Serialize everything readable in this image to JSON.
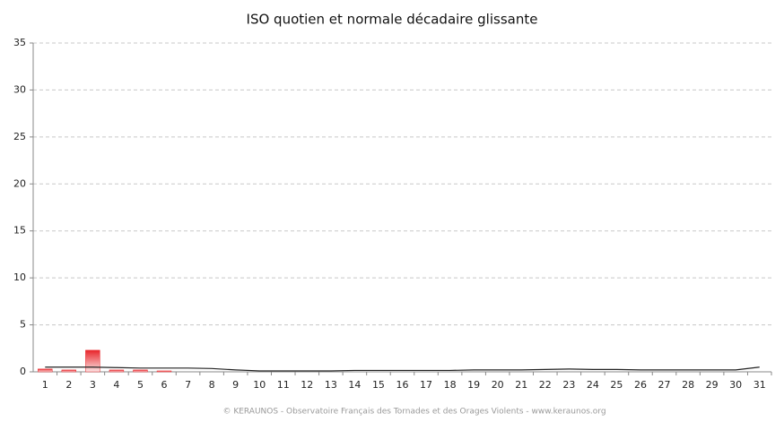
{
  "chart_data": {
    "type": "bar",
    "title": "ISO quotien et normale décadaire glissante",
    "source": "© KERAUNOS - Observatoire Français des Tornades et des Orages Violents - www.keraunos.org",
    "categories": [
      "1",
      "2",
      "3",
      "4",
      "5",
      "6",
      "7",
      "8",
      "9",
      "10",
      "11",
      "12",
      "13",
      "14",
      "15",
      "16",
      "17",
      "18",
      "19",
      "20",
      "21",
      "22",
      "23",
      "24",
      "25",
      "26",
      "27",
      "28",
      "29",
      "30",
      "31"
    ],
    "series": [
      {
        "type": "bar",
        "color": "#e8262b",
        "values": [
          0.3,
          0.2,
          2.3,
          0.2,
          0.2,
          0.1,
          0,
          0,
          0,
          0,
          0,
          0,
          0,
          0,
          0,
          0,
          0,
          0,
          0,
          0,
          0,
          0,
          0,
          0,
          0,
          0,
          0,
          0,
          0,
          0,
          0
        ]
      },
      {
        "type": "line",
        "color": "#222222",
        "values": [
          0.5,
          0.5,
          0.5,
          0.45,
          0.4,
          0.4,
          0.4,
          0.35,
          0.2,
          0.1,
          0.1,
          0.1,
          0.1,
          0.15,
          0.15,
          0.15,
          0.15,
          0.15,
          0.2,
          0.2,
          0.2,
          0.25,
          0.3,
          0.25,
          0.25,
          0.2,
          0.2,
          0.2,
          0.2,
          0.2,
          0.5
        ]
      }
    ],
    "ylim": [
      0,
      35
    ],
    "yticks": [
      0,
      5,
      10,
      15,
      20,
      25,
      30,
      35
    ],
    "grid": true
  }
}
